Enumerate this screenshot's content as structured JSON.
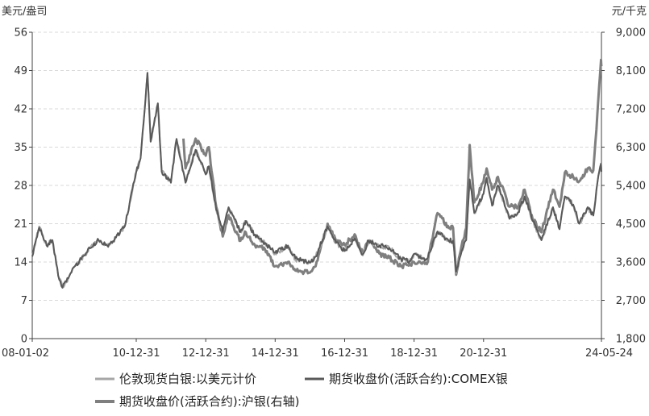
{
  "chart_data": {
    "type": "line",
    "title": "",
    "left_axis": {
      "unit": "美元/盎司",
      "ylim": [
        0,
        56
      ],
      "ticks": [
        0,
        7,
        14,
        21,
        28,
        35,
        42,
        49,
        56
      ],
      "tick_labels": [
        "0",
        "7",
        "14",
        "21",
        "28",
        "35",
        "42",
        "49",
        "56"
      ]
    },
    "right_axis": {
      "unit": "元/千克",
      "ylim": [
        1800,
        9000
      ],
      "ticks": [
        1800,
        2700,
        3600,
        4500,
        5400,
        6300,
        7200,
        8100,
        9000
      ],
      "tick_labels": [
        "1,800",
        "2,700",
        "3,600",
        "4,500",
        "5,400",
        "6,300",
        "7,200",
        "8,100",
        "9,000"
      ]
    },
    "x_axis": {
      "range": [
        "2008-01-02",
        "2024-05-24"
      ],
      "ticks": [
        "2008-01-02",
        "2010-12-31",
        "2012-12-31",
        "2014-12-31",
        "2016-12-31",
        "2018-12-31",
        "2020-12-31",
        "2024-05-24"
      ],
      "tick_labels": [
        "08-01-02",
        "10-12-31",
        "12-12-31",
        "14-12-31",
        "16-12-31",
        "18-12-31",
        "20-12-31",
        "24-05-24"
      ]
    },
    "grid": true,
    "legend_placement": "bottom",
    "series": [
      {
        "name": "伦敦现货白银:以美元计价",
        "axis": "left",
        "color": "#a6a6a6",
        "points": [
          [
            "2008-01-02",
            15.2
          ],
          [
            "2008-03-15",
            20.5
          ],
          [
            "2008-06-01",
            17.0
          ],
          [
            "2008-08-01",
            18.0
          ],
          [
            "2008-10-01",
            11.5
          ],
          [
            "2008-11-15",
            9.5
          ],
          [
            "2009-01-15",
            11.0
          ],
          [
            "2009-03-01",
            12.8
          ],
          [
            "2009-06-01",
            14.5
          ],
          [
            "2009-09-01",
            16.5
          ],
          [
            "2009-12-01",
            18.0
          ],
          [
            "2010-03-01",
            17.0
          ],
          [
            "2010-06-01",
            18.5
          ],
          [
            "2010-09-01",
            20.5
          ],
          [
            "2010-12-31",
            30.5
          ],
          [
            "2011-02-15",
            33.0
          ],
          [
            "2011-04-28",
            48.5
          ],
          [
            "2011-06-01",
            36.0
          ],
          [
            "2011-08-15",
            43.0
          ],
          [
            "2011-09-25",
            30.5
          ],
          [
            "2011-12-31",
            28.5
          ],
          [
            "2012-02-28",
            36.5
          ],
          [
            "2012-06-01",
            28.5
          ],
          [
            "2012-09-15",
            34.5
          ],
          [
            "2012-12-31",
            30.0
          ],
          [
            "2013-02-01",
            31.5
          ],
          [
            "2013-04-20",
            23.5
          ],
          [
            "2013-06-28",
            19.5
          ],
          [
            "2013-08-28",
            24.0
          ],
          [
            "2013-12-31",
            19.5
          ],
          [
            "2014-02-25",
            21.5
          ],
          [
            "2014-06-01",
            19.0
          ],
          [
            "2014-09-15",
            17.5
          ],
          [
            "2014-12-31",
            15.5
          ],
          [
            "2015-05-15",
            17.0
          ],
          [
            "2015-08-01",
            14.5
          ],
          [
            "2015-12-31",
            13.8
          ],
          [
            "2016-03-01",
            15.0
          ],
          [
            "2016-07-05",
            20.5
          ],
          [
            "2016-10-01",
            17.5
          ],
          [
            "2016-12-31",
            16.0
          ],
          [
            "2017-04-15",
            18.3
          ],
          [
            "2017-07-10",
            15.2
          ],
          [
            "2017-09-08",
            17.9
          ],
          [
            "2017-12-31",
            17.0
          ],
          [
            "2018-04-15",
            16.6
          ],
          [
            "2018-08-15",
            14.5
          ],
          [
            "2018-11-15",
            14.0
          ],
          [
            "2018-12-31",
            15.4
          ],
          [
            "2019-05-15",
            14.4
          ],
          [
            "2019-09-04",
            19.5
          ],
          [
            "2019-12-31",
            17.8
          ],
          [
            "2020-02-15",
            17.8
          ],
          [
            "2020-03-18",
            12.0
          ],
          [
            "2020-05-15",
            16.0
          ],
          [
            "2020-07-01",
            18.0
          ],
          [
            "2020-08-07",
            29.0
          ],
          [
            "2020-09-25",
            22.9
          ],
          [
            "2020-12-31",
            26.5
          ],
          [
            "2021-02-01",
            29.4
          ],
          [
            "2021-03-31",
            24.3
          ],
          [
            "2021-05-31",
            28.0
          ],
          [
            "2021-09-30",
            21.9
          ],
          [
            "2021-12-31",
            23.1
          ],
          [
            "2022-03-08",
            26.0
          ],
          [
            "2022-06-01",
            21.5
          ],
          [
            "2022-09-01",
            18.0
          ],
          [
            "2022-12-31",
            24.0
          ],
          [
            "2023-03-10",
            20.0
          ],
          [
            "2023-05-05",
            26.0
          ],
          [
            "2023-08-01",
            24.5
          ],
          [
            "2023-10-05",
            21.0
          ],
          [
            "2023-12-31",
            24.0
          ],
          [
            "2024-02-28",
            22.5
          ],
          [
            "2024-04-12",
            28.5
          ],
          [
            "2024-05-20",
            32.0
          ],
          [
            "2024-05-24",
            30.5
          ]
        ]
      },
      {
        "name": "期货收盘价(活跃合约):COMEX银",
        "axis": "left",
        "color": "#595959",
        "points": [
          [
            "2008-01-02",
            15.0
          ],
          [
            "2008-03-15",
            20.3
          ],
          [
            "2008-06-01",
            17.0
          ],
          [
            "2008-08-01",
            18.0
          ],
          [
            "2008-10-01",
            11.5
          ],
          [
            "2008-11-15",
            9.3
          ],
          [
            "2009-01-15",
            11.0
          ],
          [
            "2009-03-01",
            12.8
          ],
          [
            "2009-06-01",
            14.5
          ],
          [
            "2009-09-01",
            16.5
          ],
          [
            "2009-12-01",
            18.0
          ],
          [
            "2010-03-01",
            17.0
          ],
          [
            "2010-06-01",
            18.5
          ],
          [
            "2010-09-01",
            20.5
          ],
          [
            "2010-12-31",
            30.5
          ],
          [
            "2011-02-15",
            33.0
          ],
          [
            "2011-04-28",
            48.6
          ],
          [
            "2011-06-01",
            36.0
          ],
          [
            "2011-08-15",
            43.0
          ],
          [
            "2011-09-25",
            30.5
          ],
          [
            "2011-12-31",
            28.5
          ],
          [
            "2012-02-28",
            36.5
          ],
          [
            "2012-06-01",
            28.5
          ],
          [
            "2012-09-15",
            34.5
          ],
          [
            "2012-12-31",
            30.0
          ],
          [
            "2013-02-01",
            31.5
          ],
          [
            "2013-04-20",
            23.5
          ],
          [
            "2013-06-28",
            19.5
          ],
          [
            "2013-08-28",
            24.0
          ],
          [
            "2013-12-31",
            19.5
          ],
          [
            "2014-02-25",
            21.5
          ],
          [
            "2014-06-01",
            19.0
          ],
          [
            "2014-09-15",
            17.5
          ],
          [
            "2014-12-31",
            15.7
          ],
          [
            "2015-05-15",
            17.0
          ],
          [
            "2015-08-01",
            14.7
          ],
          [
            "2015-12-31",
            13.9
          ],
          [
            "2016-03-01",
            15.0
          ],
          [
            "2016-07-05",
            20.5
          ],
          [
            "2016-10-01",
            17.5
          ],
          [
            "2016-12-31",
            16.0
          ],
          [
            "2017-04-15",
            18.3
          ],
          [
            "2017-07-10",
            15.4
          ],
          [
            "2017-09-08",
            17.9
          ],
          [
            "2017-12-31",
            17.0
          ],
          [
            "2018-04-15",
            16.6
          ],
          [
            "2018-08-15",
            14.6
          ],
          [
            "2018-11-15",
            14.2
          ],
          [
            "2018-12-31",
            15.5
          ],
          [
            "2019-05-15",
            14.5
          ],
          [
            "2019-09-04",
            19.6
          ],
          [
            "2019-12-31",
            17.9
          ],
          [
            "2020-02-15",
            17.9
          ],
          [
            "2020-03-18",
            12.2
          ],
          [
            "2020-05-15",
            16.0
          ],
          [
            "2020-07-01",
            18.0
          ],
          [
            "2020-08-07",
            29.1
          ],
          [
            "2020-09-25",
            23.0
          ],
          [
            "2020-12-31",
            26.5
          ],
          [
            "2021-02-01",
            29.4
          ],
          [
            "2021-03-31",
            24.3
          ],
          [
            "2021-05-31",
            28.0
          ],
          [
            "2021-09-30",
            21.9
          ],
          [
            "2021-12-31",
            23.1
          ],
          [
            "2022-03-08",
            26.0
          ],
          [
            "2022-06-01",
            21.5
          ],
          [
            "2022-09-01",
            18.0
          ],
          [
            "2022-12-31",
            24.0
          ],
          [
            "2023-03-10",
            20.0
          ],
          [
            "2023-05-05",
            26.0
          ],
          [
            "2023-08-01",
            24.5
          ],
          [
            "2023-10-05",
            21.0
          ],
          [
            "2023-12-31",
            24.0
          ],
          [
            "2024-02-28",
            22.5
          ],
          [
            "2024-04-12",
            28.5
          ],
          [
            "2024-05-20",
            32.0
          ],
          [
            "2024-05-24",
            30.5
          ]
        ]
      },
      {
        "name": "期货收盘价(活跃合约):沪银(右轴)",
        "axis": "right",
        "color": "#7f7f7f",
        "points": [
          [
            "2012-05-10",
            6500
          ],
          [
            "2012-06-01",
            5800
          ],
          [
            "2012-09-15",
            6500
          ],
          [
            "2012-12-31",
            6100
          ],
          [
            "2013-02-01",
            6300
          ],
          [
            "2013-04-20",
            4900
          ],
          [
            "2013-06-28",
            4200
          ],
          [
            "2013-08-28",
            4700
          ],
          [
            "2013-12-31",
            4100
          ],
          [
            "2014-02-25",
            4300
          ],
          [
            "2014-06-01",
            4000
          ],
          [
            "2014-09-15",
            3900
          ],
          [
            "2014-12-31",
            3500
          ],
          [
            "2015-05-15",
            3600
          ],
          [
            "2015-08-01",
            3400
          ],
          [
            "2015-12-31",
            3350
          ],
          [
            "2016-03-01",
            3500
          ],
          [
            "2016-07-05",
            4500
          ],
          [
            "2016-10-01",
            4100
          ],
          [
            "2016-12-31",
            4000
          ],
          [
            "2017-04-15",
            4250
          ],
          [
            "2017-07-10",
            3800
          ],
          [
            "2017-09-08",
            4100
          ],
          [
            "2017-12-31",
            3800
          ],
          [
            "2018-04-15",
            3700
          ],
          [
            "2018-08-15",
            3500
          ],
          [
            "2018-11-15",
            3550
          ],
          [
            "2018-12-31",
            3600
          ],
          [
            "2019-05-15",
            3550
          ],
          [
            "2019-09-04",
            4750
          ],
          [
            "2019-12-31",
            4400
          ],
          [
            "2020-02-15",
            4400
          ],
          [
            "2020-03-18",
            3300
          ],
          [
            "2020-05-15",
            4000
          ],
          [
            "2020-07-01",
            4400
          ],
          [
            "2020-08-07",
            6350
          ],
          [
            "2020-09-25",
            5000
          ],
          [
            "2020-12-31",
            5500
          ],
          [
            "2021-02-01",
            5800
          ],
          [
            "2021-03-31",
            5300
          ],
          [
            "2021-05-31",
            5600
          ],
          [
            "2021-09-30",
            4900
          ],
          [
            "2021-12-31",
            4900
          ],
          [
            "2022-03-08",
            5300
          ],
          [
            "2022-06-01",
            4600
          ],
          [
            "2022-09-01",
            4300
          ],
          [
            "2022-12-31",
            5300
          ],
          [
            "2023-03-10",
            4900
          ],
          [
            "2023-05-05",
            5700
          ],
          [
            "2023-08-01",
            5600
          ],
          [
            "2023-10-05",
            5500
          ],
          [
            "2023-12-31",
            5800
          ],
          [
            "2024-02-28",
            5750
          ],
          [
            "2024-04-12",
            7100
          ],
          [
            "2024-05-20",
            8350
          ],
          [
            "2024-05-24",
            8200
          ]
        ]
      }
    ]
  },
  "legend": [
    {
      "label": "伦敦现货白银:以美元计价",
      "color": "#a6a6a6"
    },
    {
      "label": "期货收盘价(活跃合约):COMEX银",
      "color": "#595959"
    },
    {
      "label": "期货收盘价(活跃合约):沪银(右轴)",
      "color": "#7f7f7f"
    }
  ]
}
